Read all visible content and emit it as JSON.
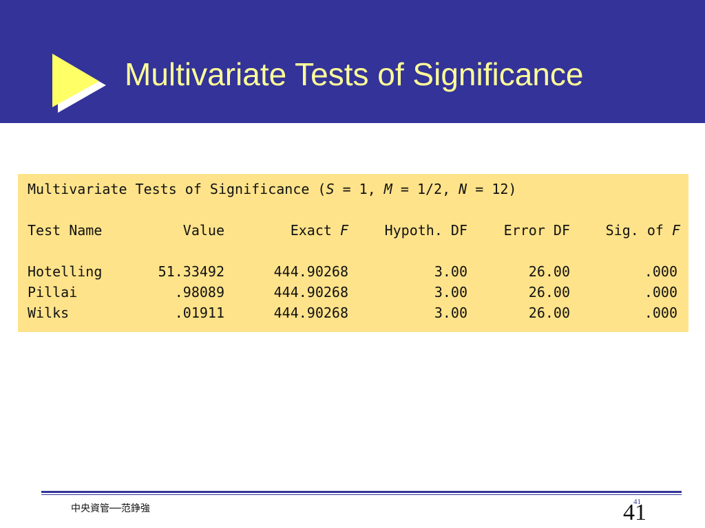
{
  "slide": {
    "title": "Multivariate Tests of Significance",
    "colors": {
      "header": "#333399",
      "title": "#ffff99",
      "output_bg": "#ffe38a",
      "bullet": "#ffff66"
    },
    "bullet_icon": "play-triangle-icon"
  },
  "output": {
    "heading_text": "Multivariate Tests of Significance (",
    "params": [
      {
        "sym": "S",
        "val": " = 1, "
      },
      {
        "sym": "M",
        "val": " = 1/2, "
      },
      {
        "sym": "N",
        "val": " = 12)"
      }
    ],
    "columns": {
      "test_name": "Test Name",
      "value": "Value",
      "exact_f_label": "Exact ",
      "exact_f_sym": "F",
      "hypoth_df": "Hypoth. DF",
      "error_df": "Error DF",
      "sig_label": "Sig. of ",
      "sig_sym": "F"
    },
    "rows": [
      {
        "name": "Hotelling",
        "value": "51.33492",
        "exact_f": "444.90268",
        "hypoth_df": "3.00",
        "error_df": "26.00",
        "sig": ".000"
      },
      {
        "name": "Pillai",
        "value": ".98089",
        "exact_f": "444.90268",
        "hypoth_df": "3.00",
        "error_df": "26.00",
        "sig": ".000"
      },
      {
        "name": "Wilks",
        "value": ".01911",
        "exact_f": "444.90268",
        "hypoth_df": "3.00",
        "error_df": "26.00",
        "sig": ".000"
      }
    ]
  },
  "footer": {
    "text": "中央資管──范錚強",
    "page_small": "41",
    "page_number": "41"
  }
}
